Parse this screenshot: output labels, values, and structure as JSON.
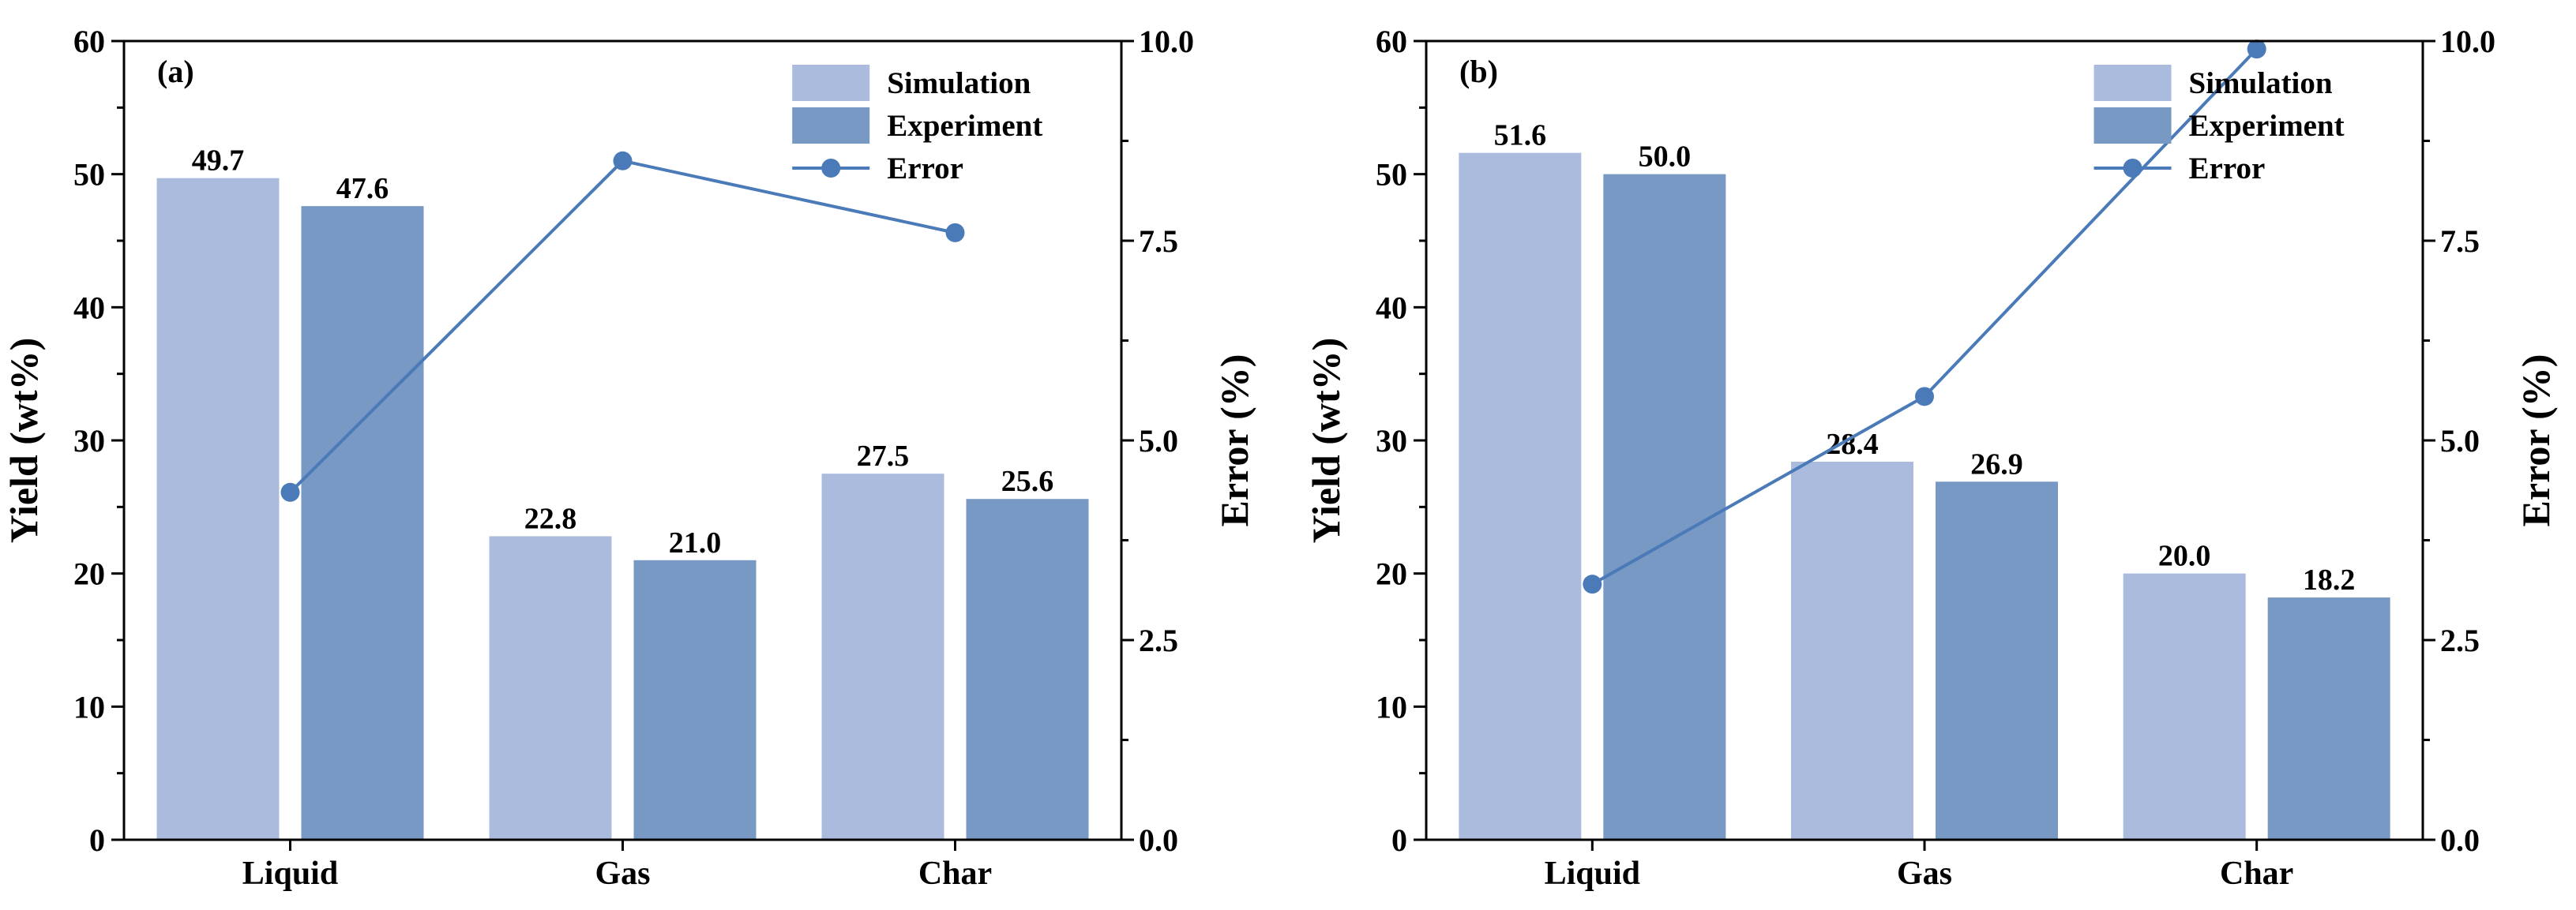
{
  "chart_data": [
    {
      "type": "bar",
      "panel_label": "(a)",
      "categories": [
        "Liquid",
        "Gas",
        "Char"
      ],
      "series": [
        {
          "name": "Simulation",
          "values": [
            49.7,
            22.8,
            27.5
          ],
          "labels": [
            "49.7",
            "22.8",
            "27.5"
          ],
          "color": "#abbbde"
        },
        {
          "name": "Experiment",
          "values": [
            47.6,
            21.0,
            25.6
          ],
          "labels": [
            "47.6",
            "21.0",
            "25.6"
          ],
          "color": "#7799c4"
        }
      ],
      "line_series": {
        "name": "Error",
        "values": [
          4.35,
          8.5,
          7.6
        ],
        "color": "#4a7ab8",
        "axis": "right"
      },
      "ylabel": "Yield (wt%)",
      "ylim": [
        0,
        60
      ],
      "yticks": [
        "0",
        "10",
        "20",
        "30",
        "40",
        "50",
        "60"
      ],
      "y2label": "Error (%)",
      "y2lim": [
        0,
        10
      ],
      "y2ticks": [
        "0.0",
        "2.5",
        "5.0",
        "7.5",
        "10.0"
      ],
      "legend_position": "top-right"
    },
    {
      "type": "bar",
      "panel_label": "(b)",
      "categories": [
        "Liquid",
        "Gas",
        "Char"
      ],
      "series": [
        {
          "name": "Simulation",
          "values": [
            51.6,
            28.4,
            20.0
          ],
          "labels": [
            "51.6",
            "28.4",
            "20.0"
          ],
          "color": "#abbbde"
        },
        {
          "name": "Experiment",
          "values": [
            50.0,
            26.9,
            18.2
          ],
          "labels": [
            "50.0",
            "26.9",
            "18.2"
          ],
          "color": "#7799c4"
        }
      ],
      "line_series": {
        "name": "Error",
        "values": [
          3.2,
          5.55,
          9.9
        ],
        "color": "#4a7ab8",
        "axis": "right"
      },
      "ylabel": "Yield (wt%)",
      "ylim": [
        0,
        60
      ],
      "yticks": [
        "0",
        "10",
        "20",
        "30",
        "40",
        "50",
        "60"
      ],
      "y2label": "Error (%)",
      "y2lim": [
        0,
        10
      ],
      "y2ticks": [
        "0.0",
        "2.5",
        "5.0",
        "7.5",
        "10.0"
      ],
      "legend_position": "top-right"
    }
  ]
}
